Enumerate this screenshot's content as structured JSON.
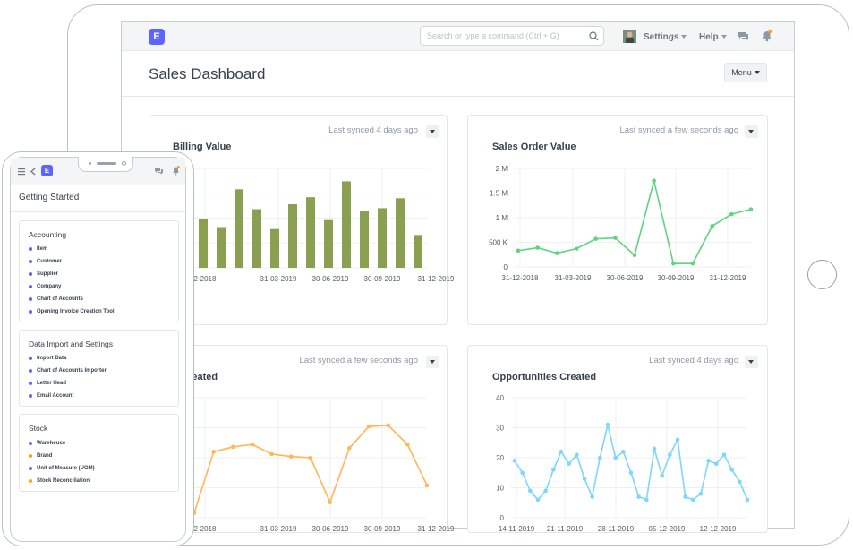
{
  "app": {
    "logo_letter": "E"
  },
  "navbar": {
    "search_placeholder": "Search or type a command (Ctrl + G)",
    "settings_label": "Settings",
    "help_label": "Help"
  },
  "page": {
    "title": "Sales Dashboard",
    "menu_label": "Menu"
  },
  "cards": [
    {
      "title": "Billing Value",
      "sync": "Last synced 4 days ago"
    },
    {
      "title": "Sales Order Value",
      "sync": "Last synced a few seconds ago"
    },
    {
      "title": "s Created",
      "sync": "Last synced a few seconds ago"
    },
    {
      "title": "Opportunities Created",
      "sync": "Last synced 4 days ago"
    }
  ],
  "chart_data": [
    {
      "type": "bar",
      "title": "Billing Value",
      "color": "#8a9f4f",
      "xtick_labels": [
        "2-2018",
        "31-03-2019",
        "30-06-2019",
        "30-09-2019",
        "31-12-2019"
      ],
      "values": [
        0.49,
        0.41,
        0.79,
        0.59,
        0.39,
        0.64,
        0.71,
        0.48,
        0.87,
        0.57,
        0.6,
        0.7,
        0.33
      ]
    },
    {
      "type": "line",
      "title": "Sales Order Value",
      "color": "#5dd47e",
      "xtick_labels": [
        "31-12-2018",
        "31-03-2019",
        "30-06-2019",
        "30-09-2019",
        "31-12-2019"
      ],
      "ytick_labels": [
        "0",
        "500 K",
        "1 M",
        "1.5 M",
        "2 M"
      ],
      "ylim": [
        0,
        2000000
      ],
      "values": [
        330000,
        390000,
        280000,
        370000,
        570000,
        590000,
        240000,
        1750000,
        70000,
        70000,
        830000,
        1070000,
        1170000
      ]
    },
    {
      "type": "line",
      "title": "s Created",
      "color": "#ffb655",
      "xtick_labels": [
        "2-2018",
        "31-03-2019",
        "30-06-2019",
        "30-09-2019",
        "31-12-2019"
      ],
      "values": [
        0.04,
        0.55,
        0.59,
        0.61,
        0.53,
        0.51,
        0.5,
        0.13,
        0.58,
        0.76,
        0.77,
        0.61,
        0.27
      ]
    },
    {
      "type": "line",
      "title": "Opportunities Created",
      "color": "#7cd6fd",
      "xtick_labels": [
        "14-11-2019",
        "21-11-2019",
        "28-11-2019",
        "05-12-2019",
        "12-12-2019"
      ],
      "ytick_labels": [
        "0",
        "10",
        "20",
        "30",
        "40"
      ],
      "ylim": [
        0,
        40
      ],
      "values": [
        19,
        15,
        9,
        6,
        9,
        16,
        22,
        18,
        21,
        13,
        7,
        20,
        31,
        20,
        22,
        15,
        7,
        6,
        23,
        14,
        21,
        26,
        7,
        6,
        8,
        19,
        18,
        21,
        16,
        12,
        6
      ]
    }
  ],
  "mobile": {
    "page_title": "Getting Started",
    "sections": [
      {
        "title": "Accounting",
        "items": [
          "Item",
          "Customer",
          "Supplier",
          "Company",
          "Chart of Accounts",
          "Opening Invoice Creation Tool"
        ]
      },
      {
        "title": "Data Import and Settings",
        "items": [
          "Import Data",
          "Chart of Accounts Importer",
          "Letter Head",
          "Email Account"
        ]
      },
      {
        "title": "Stock",
        "items": [
          "Warehouse",
          "Brand",
          "Unit of Measure (UOM)",
          "Stock Reconciliation"
        ]
      }
    ]
  }
}
